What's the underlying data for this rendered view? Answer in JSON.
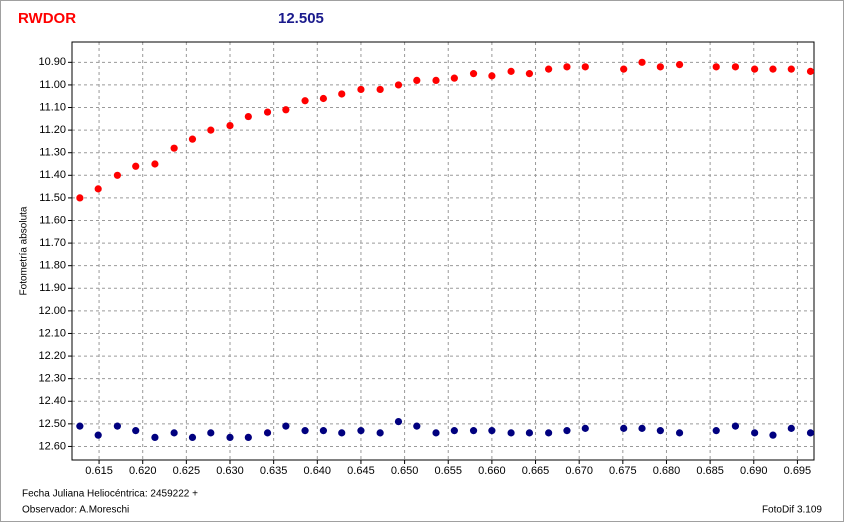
{
  "chart_data": {
    "type": "scatter",
    "title": "RWDOR",
    "title_color": "#ff0000",
    "annotation": "12.505",
    "annotation_color": "#1a1a8c",
    "y_label": "Fotometría absoluta",
    "x_label": "Fecha Juliana Heliocéntrica: 2459222 +",
    "observer": "Observador: A.Moreschi",
    "software": "FotoDif 3.109",
    "y_inverted": true,
    "grid": true,
    "xlim": [
      0.6119,
      0.6969
    ],
    "ylim": [
      10.81,
      12.66
    ],
    "xticks": [
      0.615,
      {
        "value": 0.62,
        "label": "0.620"
      },
      0.625,
      {
        "value": 0.63,
        "label": "0.630"
      },
      0.635,
      {
        "value": 0.64,
        "label": "0.640"
      },
      0.645,
      {
        "value": 0.65,
        "label": "0.650"
      },
      0.655,
      {
        "value": 0.66,
        "label": "0.660"
      },
      0.665,
      {
        "value": 0.67,
        "label": "0.670"
      },
      0.675,
      {
        "value": 0.68,
        "label": "0.680"
      },
      0.685,
      {
        "value": 0.69,
        "label": "0.690"
      },
      0.695
    ],
    "yticks": [
      {
        "value": 10.9,
        "label": "10.90"
      },
      {
        "value": 11.0,
        "label": "11.00"
      },
      {
        "value": 11.1,
        "label": "11.10"
      },
      {
        "value": 11.2,
        "label": "11.20"
      },
      {
        "value": 11.3,
        "label": "11.30"
      },
      {
        "value": 11.4,
        "label": "11.40"
      },
      {
        "value": 11.5,
        "label": "11.50"
      },
      {
        "value": 11.6,
        "label": "11.60"
      },
      {
        "value": 11.7,
        "label": "11.70"
      },
      {
        "value": 11.8,
        "label": "11.80"
      },
      {
        "value": 11.9,
        "label": "11.90"
      },
      {
        "value": 12.0,
        "label": "12.00"
      },
      {
        "value": 12.1,
        "label": "12.10"
      },
      {
        "value": 12.2,
        "label": "12.20"
      },
      {
        "value": 12.3,
        "label": "12.30"
      },
      {
        "value": 12.4,
        "label": "12.40"
      },
      {
        "value": 12.5,
        "label": "12.50"
      },
      {
        "value": 12.6,
        "label": "12.60"
      }
    ],
    "x": [
      0.6128,
      0.6149,
      0.6171,
      0.6192,
      0.6214,
      0.6236,
      0.6257,
      0.6278,
      0.63,
      0.6321,
      0.6343,
      0.6364,
      0.6386,
      0.6407,
      0.6428,
      0.645,
      0.6472,
      0.6493,
      0.6514,
      0.6536,
      0.6557,
      0.6579,
      0.66,
      0.6622,
      0.6643,
      0.6665,
      0.6686,
      0.6707,
      0.6751,
      0.6772,
      0.6793,
      0.6815,
      0.6857,
      0.6879,
      0.6901,
      0.6922,
      0.6943,
      0.6965
    ],
    "series": [
      {
        "color": "#ff0000",
        "values": [
          11.5,
          11.46,
          11.4,
          11.36,
          11.35,
          11.28,
          11.24,
          11.2,
          11.18,
          11.14,
          11.12,
          11.11,
          11.07,
          11.06,
          11.04,
          11.02,
          11.02,
          11.0,
          10.98,
          10.98,
          10.97,
          10.95,
          10.96,
          10.94,
          10.95,
          10.93,
          10.92,
          10.92,
          10.93,
          10.9,
          10.92,
          10.91,
          10.92,
          10.92,
          10.93,
          10.93,
          10.93,
          10.94
        ]
      },
      {
        "color": "#00007f",
        "values": [
          12.51,
          12.55,
          12.51,
          12.53,
          12.56,
          12.54,
          12.56,
          12.54,
          12.56,
          12.56,
          12.54,
          12.51,
          12.53,
          12.53,
          12.54,
          12.53,
          12.54,
          12.49,
          12.51,
          12.54,
          12.53,
          12.53,
          12.53,
          12.54,
          12.54,
          12.54,
          12.53,
          12.52,
          12.52,
          12.52,
          12.53,
          12.54,
          12.53,
          12.51,
          12.54,
          12.55,
          12.52,
          12.54
        ]
      }
    ]
  }
}
